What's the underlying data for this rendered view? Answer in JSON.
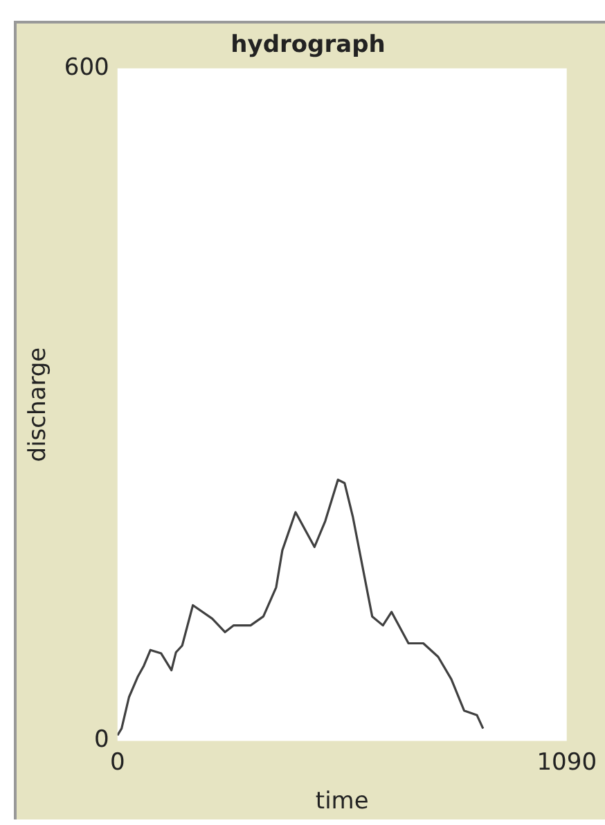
{
  "chart_data": {
    "type": "line",
    "title": "hydrograph",
    "xlabel": "time",
    "ylabel": "discharge",
    "xlim": [
      0,
      1090
    ],
    "ylim": [
      0,
      600
    ],
    "xticks": [
      0,
      1090
    ],
    "yticks": [
      0,
      600
    ],
    "grid": false,
    "legend": false,
    "marker": "none",
    "line_style": "solid",
    "series": [
      {
        "color": "#404040",
        "x": [
          0,
          10,
          28,
          49,
          64,
          80,
          106,
          131,
          142,
          157,
          183,
          230,
          261,
          282,
          323,
          354,
          385,
          400,
          432,
          478,
          504,
          535,
          551,
          571,
          618,
          644,
          665,
          706,
          742,
          778,
          810,
          841,
          872,
          887
        ],
        "values": [
          5,
          11,
          39,
          57,
          67,
          81,
          78,
          63,
          79,
          85,
          121,
          109,
          97,
          103,
          103,
          111,
          137,
          170,
          204,
          173,
          196,
          233,
          230,
          200,
          111,
          103,
          115,
          87,
          87,
          75,
          55,
          27,
          23,
          11
        ]
      }
    ]
  }
}
